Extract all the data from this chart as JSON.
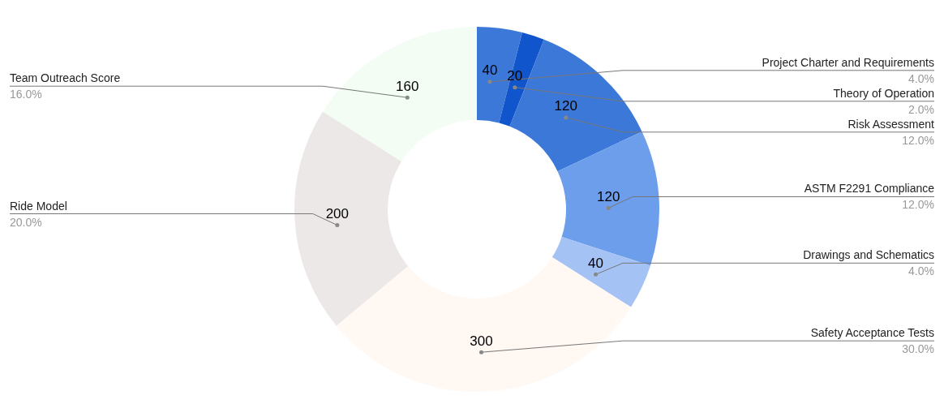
{
  "chart_data": {
    "type": "donut",
    "categories": [
      "Project Charter and Requirements",
      "Theory of Operation",
      "Risk Assessment",
      "ASTM F2291 Compliance",
      "Drawings and Schematics",
      "Safety Acceptance Tests",
      "Ride Model",
      "Team Outreach Score"
    ],
    "values": [
      40,
      20,
      120,
      120,
      40,
      300,
      200,
      160
    ],
    "colors": [
      "#3c78d8",
      "#1155cc",
      "#3c78d8",
      "#6d9eeb",
      "#a4c2f4",
      "#fff8f3",
      "#ede8e8",
      "#f3fdf3"
    ],
    "data_labels": true,
    "annotations": [
      "4.0%",
      "2.0%",
      "12.0%",
      "12.0%",
      "4.0%",
      "30.0%",
      "20.0%",
      "16.0%"
    ],
    "legend": false
  }
}
